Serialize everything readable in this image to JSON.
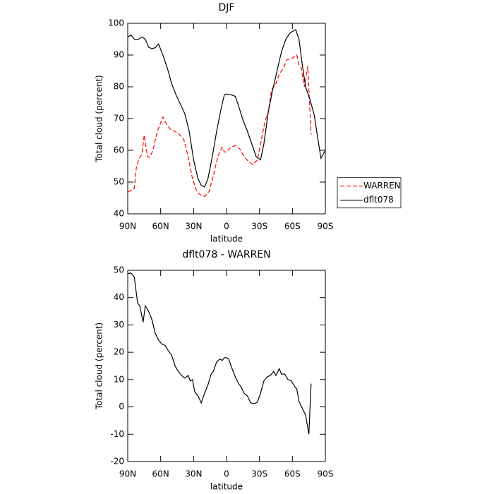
{
  "chart_data": [
    {
      "type": "line",
      "title": "DJF",
      "xlabel": "latitude",
      "ylabel": "Total cloud (percent)",
      "xlim": [
        90,
        -90
      ],
      "xticks": [
        {
          "value": 90,
          "label": "90N"
        },
        {
          "value": 60,
          "label": "60N"
        },
        {
          "value": 30,
          "label": "30N"
        },
        0,
        {
          "value": -30,
          "label": "30S"
        },
        {
          "value": -60,
          "label": "60S"
        },
        {
          "value": -90,
          "label": "90S"
        }
      ],
      "ylim": [
        40,
        100
      ],
      "yticks": [
        40,
        50,
        60,
        70,
        80,
        90,
        100
      ],
      "legend": "right",
      "series": [
        {
          "name": "WARREN",
          "color": "#ff0000",
          "line_style": "dashed",
          "x": [
            90,
            87,
            84,
            82,
            80,
            77,
            75,
            72,
            70,
            67,
            63,
            58,
            55,
            51,
            47,
            43,
            39,
            35,
            31,
            27,
            24,
            20,
            16,
            12,
            8,
            4,
            2,
            0,
            -4,
            -8,
            -12,
            -16,
            -20,
            -24,
            -28,
            -31,
            -35,
            -38,
            -41,
            -45,
            -48,
            -52,
            -55,
            -60,
            -64,
            -66,
            -68,
            -71,
            -74,
            -77
          ],
          "values": [
            47,
            47.3,
            48,
            55,
            57,
            59,
            64.8,
            58,
            57.8,
            60,
            66,
            70.5,
            68.5,
            66.5,
            66,
            65,
            63.5,
            58,
            51,
            47,
            46,
            45.5,
            47,
            52,
            58,
            61,
            59.5,
            59.5,
            61,
            61.5,
            60.5,
            58,
            56.5,
            55.5,
            57,
            62,
            69,
            72,
            79,
            81,
            84,
            86,
            88.5,
            89,
            90,
            87,
            86,
            80,
            86.5,
            65
          ]
        },
        {
          "name": "dflt078",
          "color": "#000000",
          "line_style": "solid",
          "x": [
            90,
            87,
            84,
            81,
            77,
            74,
            71,
            68,
            65,
            62,
            58,
            54,
            50,
            46,
            42,
            38,
            34,
            30,
            26,
            23,
            20,
            17,
            13,
            9,
            5,
            2,
            0,
            -4,
            -8,
            -11,
            -15,
            -19,
            -23,
            -27,
            -31,
            -34,
            -38,
            -42,
            -46,
            -50,
            -54,
            -58,
            -63,
            -66,
            -69,
            -72,
            -76,
            -80,
            -83,
            -86,
            -90
          ],
          "values": [
            95.7,
            96.3,
            95,
            94.8,
            95.7,
            95,
            92.5,
            92,
            92.3,
            93.5,
            90,
            86,
            81,
            77.5,
            74.5,
            71.5,
            66,
            57,
            51,
            49,
            48.5,
            51,
            58,
            66,
            73,
            77.5,
            77.7,
            77.5,
            77,
            74,
            69.5,
            66,
            62,
            58,
            57,
            62,
            72,
            79,
            85,
            91,
            95,
            97,
            98,
            95,
            87,
            80,
            76,
            71,
            64,
            57.5,
            60
          ]
        }
      ]
    },
    {
      "type": "line",
      "title": "dflt078 - WARREN",
      "xlabel": "latitude",
      "ylabel": "Total cloud (percent)",
      "xlim": [
        90,
        -90
      ],
      "xticks": [
        {
          "value": 90,
          "label": "90N"
        },
        {
          "value": 60,
          "label": "60N"
        },
        {
          "value": 30,
          "label": "30N"
        },
        0,
        {
          "value": -30,
          "label": "30S"
        },
        {
          "value": -60,
          "label": "60S"
        },
        {
          "value": -90,
          "label": "90S"
        }
      ],
      "ylim": [
        -20,
        50
      ],
      "yticks": [
        -20,
        -10,
        0,
        10,
        20,
        30,
        40,
        50
      ],
      "color": "#000000",
      "x": [
        90,
        87,
        84,
        81,
        79,
        76,
        74,
        71,
        68,
        65,
        62,
        59,
        56,
        53,
        50,
        47,
        44,
        41,
        38,
        35,
        33,
        31,
        29,
        26,
        23,
        20,
        17,
        14,
        12,
        9,
        6,
        4,
        2,
        0,
        -2,
        -5,
        -8,
        -11,
        -13,
        -16,
        -19,
        -22,
        -25,
        -28,
        -31,
        -34,
        -37,
        -40,
        -43,
        -45,
        -48,
        -50,
        -53,
        -56,
        -59,
        -62,
        -64,
        -66,
        -69,
        -72,
        -75,
        -77
      ],
      "values": [
        48.8,
        49,
        47.5,
        38,
        37,
        31,
        37,
        35,
        32,
        27,
        24.5,
        23,
        22.5,
        20.5,
        19,
        15,
        13,
        11.5,
        10.5,
        11.5,
        9.5,
        10,
        5.5,
        4,
        1.5,
        5,
        8,
        12,
        13,
        16.5,
        17.5,
        17,
        18,
        18,
        17.5,
        14,
        11,
        8.5,
        7.5,
        5,
        4,
        1.5,
        1.2,
        1.7,
        5,
        9.5,
        11,
        11.5,
        13,
        11.5,
        14,
        12,
        12,
        10,
        9.5,
        7.5,
        6.5,
        2,
        -0.5,
        -3,
        -10,
        8.5
      ]
    }
  ]
}
